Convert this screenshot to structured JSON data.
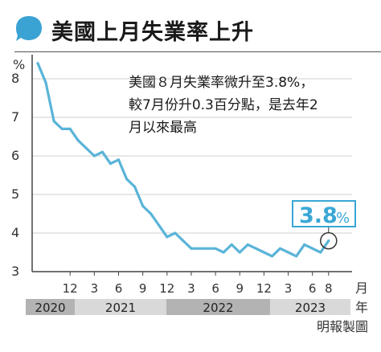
{
  "title": "美國上月失業率上升",
  "annotation": {
    "lines": [
      "美國８月失業率微升至3.8%，",
      "較7月份升0.3百分點，是去年2",
      "月以來最高"
    ]
  },
  "callout": {
    "value": "3.8",
    "unit": "%"
  },
  "source": "明報製圖",
  "colors": {
    "line": "#5ab4d8",
    "callout": "#3aa7d6",
    "bubble": "#3ba3d4",
    "year_bar_light": "#d9d9d9",
    "year_bar_dark": "#b3b3b3",
    "grid": "#cfcfcf",
    "axis": "#444444"
  },
  "chart_data": {
    "type": "line",
    "ylabel": "%",
    "ylim": [
      3,
      8
    ],
    "yticks": [
      3,
      4,
      5,
      6,
      7,
      8
    ],
    "month_label": "月",
    "year_label": "年",
    "xticks": [
      "12",
      "3",
      "6",
      "9",
      "12",
      "3",
      "6",
      "9",
      "12",
      "3",
      "6",
      "8"
    ],
    "years": [
      "2020",
      "2021",
      "2022",
      "2023"
    ],
    "grid": true,
    "x": [
      "2020-08",
      "2020-09",
      "2020-10",
      "2020-11",
      "2020-12",
      "2021-01",
      "2021-02",
      "2021-03",
      "2021-04",
      "2021-05",
      "2021-06",
      "2021-07",
      "2021-08",
      "2021-09",
      "2021-10",
      "2021-11",
      "2021-12",
      "2022-01",
      "2022-02",
      "2022-03",
      "2022-04",
      "2022-05",
      "2022-06",
      "2022-07",
      "2022-08",
      "2022-09",
      "2022-10",
      "2022-11",
      "2022-12",
      "2023-01",
      "2023-02",
      "2023-03",
      "2023-04",
      "2023-05",
      "2023-06",
      "2023-07",
      "2023-08"
    ],
    "series": [
      {
        "values": [
          8.4,
          7.9,
          6.9,
          6.7,
          6.7,
          6.4,
          6.2,
          6.0,
          6.1,
          5.8,
          5.9,
          5.4,
          5.2,
          4.7,
          4.5,
          4.2,
          3.9,
          4.0,
          3.8,
          3.6,
          3.6,
          3.6,
          3.6,
          3.5,
          3.7,
          3.5,
          3.7,
          3.6,
          3.5,
          3.4,
          3.6,
          3.5,
          3.4,
          3.7,
          3.6,
          3.5,
          3.8
        ]
      }
    ]
  }
}
